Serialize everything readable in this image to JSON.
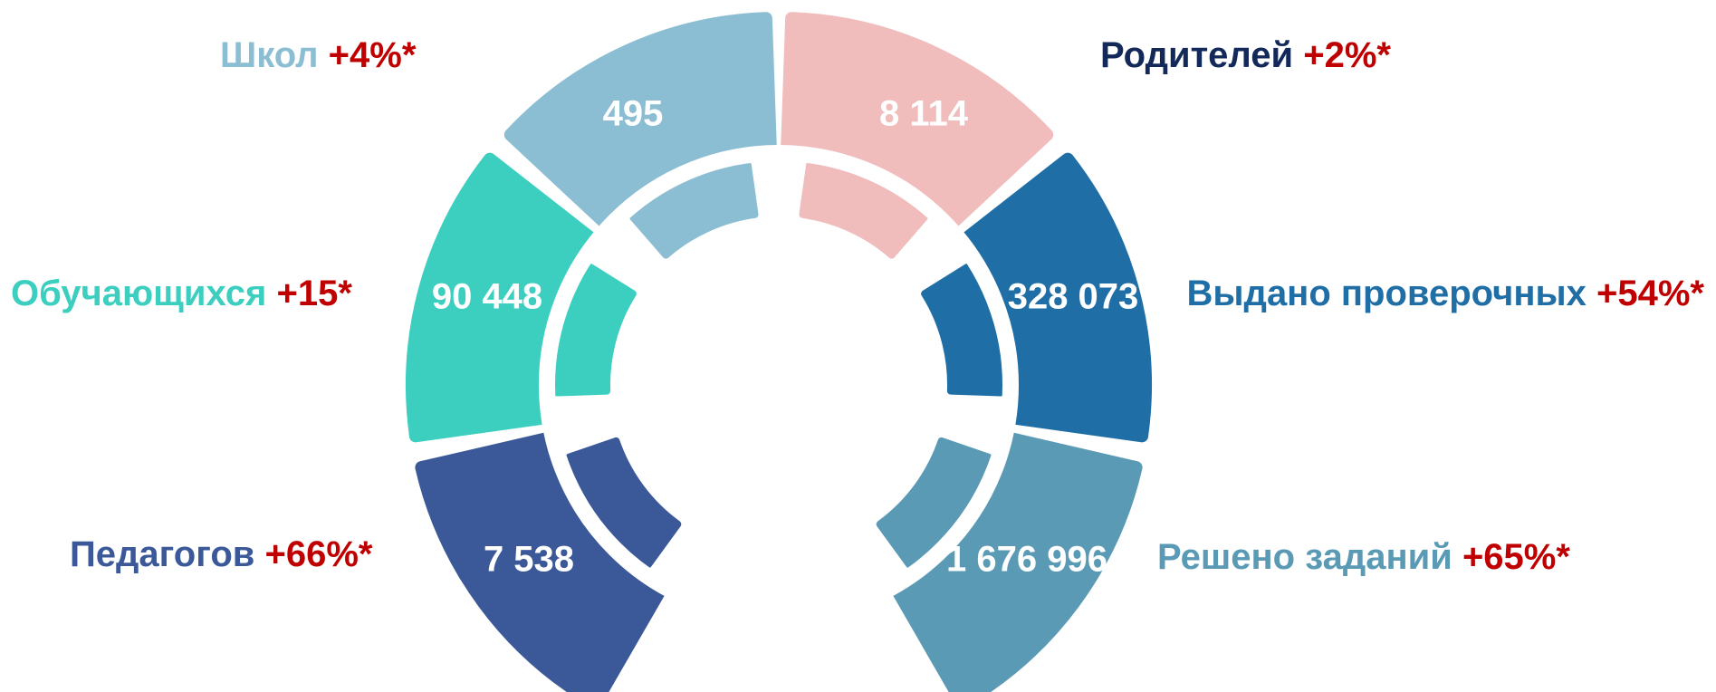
{
  "segments": [
    {
      "label": "Школ",
      "change": "+4%*",
      "value": "495",
      "color": "#8bbdd3",
      "label_color": "#8bbdd3"
    },
    {
      "label": "Родителей",
      "change": "+2%*",
      "value": "8 114",
      "color": "#f0bcbc",
      "label_color": "#13295a"
    },
    {
      "label": "Обучающихся",
      "change": "+15*",
      "value": "90 448",
      "color": "#3ccfc0",
      "label_color": "#3ccfc0"
    },
    {
      "label": "Выдано проверочных",
      "change": "+54%*",
      "value": "328 073",
      "color": "#1f6fa6",
      "label_color": "#1f6fa6"
    },
    {
      "label": "Педагогов",
      "change": "+66%*",
      "value": "7 538",
      "color": "#3b5998",
      "label_color": "#3b5998"
    },
    {
      "label": "Решено заданий",
      "change": "+65%*",
      "value": "1 676 996",
      "color": "#5a9ab5",
      "label_color": "#5a9ab5"
    }
  ],
  "change_color": "#c00000"
}
